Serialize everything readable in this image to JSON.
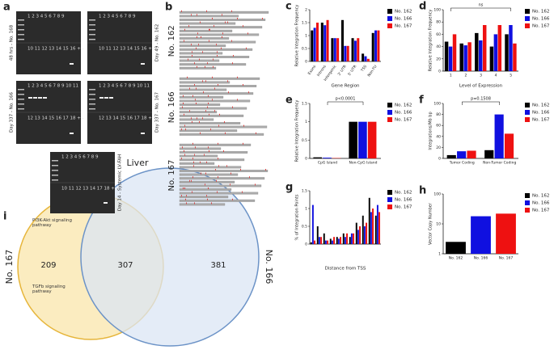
{
  "panels": {
    "a": {
      "label": "a",
      "gels": [
        {
          "top": "1 2 3 4 5 6 7 8 9",
          "bottom": "10 11 12 13 14 15 16 + -",
          "side": "48 hrs - No. 168"
        },
        {
          "top": "1 2 3 4 5 6 7 8 9",
          "bottom": "10 11 12 13 14 15 16 + -",
          "side": "Day 49 - No. 162"
        },
        {
          "top": "1 2 3 4 5 6 7 8 9 10 11",
          "bottom": "12 13 14 15 16 17 18 + -",
          "side": "Day 337 - No. 166"
        },
        {
          "top": "1 2 3 4 5 6 7 8 9 10 11",
          "bottom": "12 13 14 15 16 17 18 + -",
          "side": "Day 337 - No. 167"
        },
        {
          "top": "1 2 3 4 5 6 7 8 9",
          "bottom": "10 11 12 13 14 17 18 + -",
          "side": "Day 14 - Systemic LV-FAH"
        }
      ]
    },
    "b": {
      "label": "b",
      "groups": [
        "No. 162",
        "No. 166",
        "No. 167"
      ]
    },
    "i": {
      "label": "i",
      "title": "Liver",
      "left_name": "No. 167",
      "right_name": "No. 166",
      "left_only": 209,
      "both": 307,
      "right_only": 381,
      "pathways": [
        "PI3K-Akt signaling pathway",
        "TGFb signaling pathway"
      ]
    }
  },
  "chart_data": [
    {
      "type": "bar",
      "panel": "c",
      "x_label": "Gene Region",
      "y_label": "Relative Integration Frequency",
      "categories": [
        "Exons",
        "Introns",
        "Intergenic",
        "3' UTR",
        "5' UTR",
        "TSS",
        "Non-TU"
      ],
      "series": [
        {
          "name": "No. 162",
          "color": "#000000",
          "values": [
            1.2,
            1.5,
            0.9,
            1.6,
            0.9,
            0.3,
            1.1
          ]
        },
        {
          "name": "No. 166",
          "color": "#1010e0",
          "values": [
            1.3,
            1.4,
            0.9,
            0.6,
            0.8,
            0.2,
            1.2
          ]
        },
        {
          "name": "No. 167",
          "color": "#ee1111",
          "values": [
            1.5,
            1.6,
            0.9,
            0.6,
            0.9,
            0.1,
            1.2
          ]
        }
      ],
      "ylim": [
        0,
        2
      ],
      "yticks": [
        0,
        0.5,
        1,
        1.5,
        2
      ]
    },
    {
      "type": "bar",
      "panel": "d",
      "x_label": "Level of Expression",
      "y_label": "Relative Integration Frequency",
      "annotation": "ns",
      "categories": [
        "1",
        "2",
        "3",
        "4",
        "5"
      ],
      "series": [
        {
          "name": "No. 162",
          "color": "#000000",
          "values": [
            48,
            45,
            62,
            40,
            60
          ]
        },
        {
          "name": "No. 166",
          "color": "#1010e0",
          "values": [
            40,
            42,
            50,
            60,
            75
          ]
        },
        {
          "name": "No. 167",
          "color": "#ee1111",
          "values": [
            60,
            47,
            75,
            75,
            45
          ]
        }
      ],
      "ylim": [
        0,
        100
      ],
      "yticks": [
        0,
        20,
        40,
        60,
        80,
        100
      ]
    },
    {
      "type": "bar",
      "panel": "e",
      "y_label": "Relative Integration Frequency",
      "annotation": "p<0.0001",
      "categories": [
        "CpG Island",
        "Non-CpG Island"
      ],
      "series": [
        {
          "name": "No. 162",
          "color": "#000000",
          "values": [
            0.03,
            1
          ]
        },
        {
          "name": "No. 166",
          "color": "#1010e0",
          "values": [
            0.02,
            1
          ]
        },
        {
          "name": "No. 167",
          "color": "#ee1111",
          "values": [
            0.01,
            1
          ]
        }
      ],
      "ylim": [
        0,
        1.5
      ],
      "yticks": [
        0,
        0.5,
        1,
        1.5
      ]
    },
    {
      "type": "bar",
      "panel": "f",
      "y_label": "Integrations/Mb bp",
      "annotation": "p=0.1508",
      "categories": [
        "Tumor Coding",
        "Non-Tumor Coding"
      ],
      "series": [
        {
          "name": "No. 162",
          "color": "#000000",
          "values": [
            6,
            15
          ]
        },
        {
          "name": "No. 166",
          "color": "#1010e0",
          "values": [
            13,
            80
          ]
        },
        {
          "name": "No. 167",
          "color": "#ee1111",
          "values": [
            14,
            45
          ]
        }
      ],
      "ylim": [
        0,
        100
      ],
      "yticks": [
        0,
        20,
        40,
        60,
        80,
        100
      ]
    },
    {
      "type": "bar",
      "panel": "g",
      "x_label": "Distance from TSS",
      "y_label": "% of Integration Points",
      "categories": [
        null,
        null,
        null,
        null,
        null,
        null,
        null,
        null,
        null,
        null,
        null
      ],
      "series": [
        {
          "name": "No. 162",
          "color": "#000000",
          "values": [
            0.05,
            0.5,
            0.3,
            0.15,
            0.2,
            0.3,
            0.2,
            0.6,
            0.8,
            1.3,
            0.8
          ]
        },
        {
          "name": "No. 166",
          "color": "#1010e0",
          "values": [
            1.1,
            0.2,
            0.1,
            0.1,
            0.15,
            0.2,
            0.3,
            0.4,
            0.5,
            0.9,
            1.1
          ]
        },
        {
          "name": "No. 167",
          "color": "#ee1111",
          "values": [
            0.1,
            0.2,
            0.1,
            0.2,
            0.2,
            0.3,
            0.3,
            0.5,
            0.6,
            1.0,
            0.9
          ]
        }
      ],
      "ylim": [
        0,
        1.5
      ],
      "yticks": [
        0,
        0.5,
        1,
        1.5
      ]
    },
    {
      "type": "bar",
      "panel": "h",
      "y_label": "Vector Copy Number",
      "log_y": true,
      "categories": [
        "No. 162",
        "No. 166",
        "No. 167"
      ],
      "values": [
        2.5,
        18,
        22
      ],
      "colors": [
        "#000000",
        "#1010e0",
        "#ee1111"
      ],
      "ylim": [
        1,
        100
      ],
      "yticks": [
        1,
        10,
        100
      ]
    }
  ]
}
